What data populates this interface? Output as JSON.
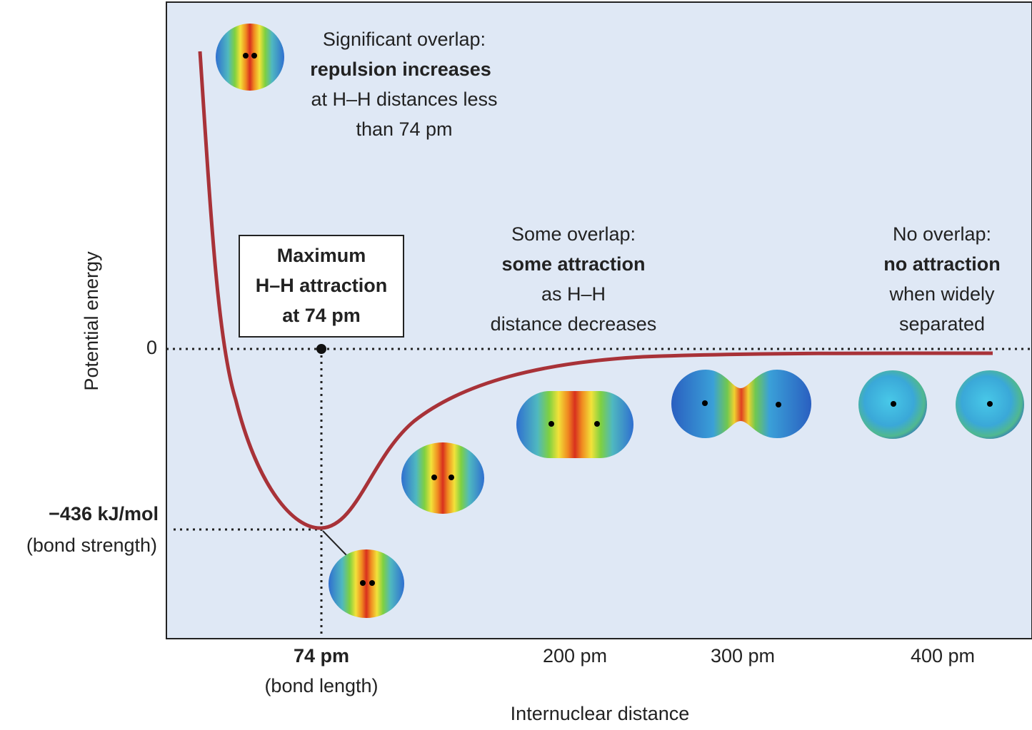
{
  "y_axis": {
    "label": "Potential energy",
    "zero": "0",
    "minimum": {
      "value": "−436 kJ/mol",
      "note": "(bond strength)"
    }
  },
  "x_axis": {
    "label": "Internuclear distance",
    "ticks": [
      {
        "label": "74 pm",
        "note": "(bond length)"
      },
      {
        "label": "200 pm"
      },
      {
        "label": "300 pm"
      },
      {
        "label": "400 pm"
      }
    ]
  },
  "box": {
    "lines": [
      "Maximum",
      "H–H attraction",
      "at 74 pm"
    ]
  },
  "annotations": [
    {
      "intro": "Significant overlap:",
      "emphasis": "repulsion increases",
      "detail": [
        "at H–H distances less",
        "than 74 pm"
      ]
    },
    {
      "intro": "Some overlap:",
      "emphasis": "some attraction",
      "detail": [
        "as H–H",
        "distance decreases"
      ]
    },
    {
      "intro": "No overlap:",
      "emphasis": "no attraction",
      "detail": [
        "when widely",
        "separated"
      ]
    }
  ]
}
